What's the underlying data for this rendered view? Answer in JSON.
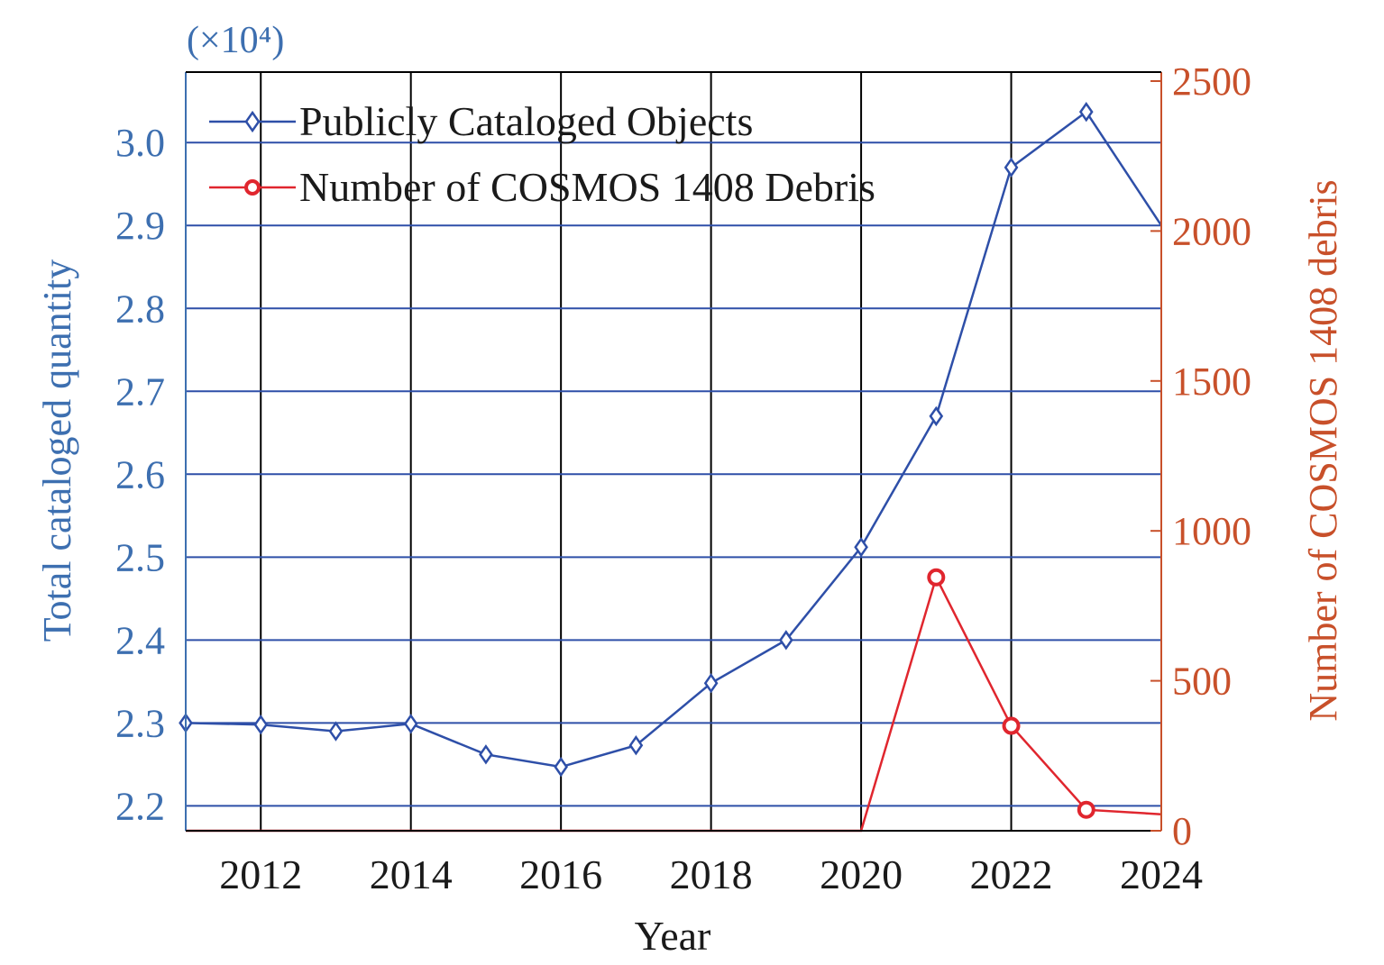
{
  "chart_data": {
    "type": "line",
    "x_axis": {
      "label": "Year",
      "range": [
        2011,
        2024
      ],
      "ticks": [
        2012,
        2014,
        2016,
        2018,
        2020,
        2022,
        2024
      ],
      "tick_labels": [
        "2012",
        "2014",
        "2016",
        "2018",
        "2020",
        "2022",
        "2024"
      ],
      "vertical_grid": true
    },
    "y_left": {
      "label": "Total cataloged quantity",
      "multiplier_label": "(×10⁴)",
      "range": [
        2.17,
        3.085
      ],
      "ticks": [
        2.2,
        2.3,
        2.4,
        2.5,
        2.6,
        2.7,
        2.8,
        2.9,
        3.0
      ],
      "tick_labels": [
        "2.2",
        "2.3",
        "2.4",
        "2.5",
        "2.6",
        "2.7",
        "2.8",
        "2.9",
        "3.0"
      ],
      "color": "#3d6fb0",
      "horizontal_grid": true
    },
    "y_right": {
      "label": "Number of COSMOS 1408 debris",
      "range": [
        0,
        2530
      ],
      "ticks": [
        0,
        500,
        1000,
        1500,
        2000,
        2500
      ],
      "tick_labels": [
        "0",
        "500",
        "1000",
        "1500",
        "2000",
        "2500"
      ],
      "color": "#c8502a"
    },
    "legend": {
      "position": "top-left",
      "entries": [
        "Publicly Cataloged Objects",
        "Number of COSMOS 1408 Debris"
      ]
    },
    "series": [
      {
        "name": "Publicly Cataloged Objects",
        "axis": "left",
        "color": "#2e4fa8",
        "marker": "diamond",
        "x": [
          2011,
          2012,
          2013,
          2014,
          2015,
          2016,
          2017,
          2018,
          2019,
          2020,
          2021,
          2022,
          2023,
          2024
        ],
        "y": [
          2.3,
          2.298,
          2.29,
          2.299,
          2.262,
          2.247,
          2.273,
          2.348,
          2.4,
          2.512,
          2.67,
          2.97,
          3.037,
          2.9
        ]
      },
      {
        "name": "Number of COSMOS 1408 Debris",
        "axis": "right",
        "color": "#e0262e",
        "marker": "circle",
        "x": [
          2011,
          2012,
          2013,
          2014,
          2015,
          2016,
          2017,
          2018,
          2019,
          2020,
          2021,
          2022,
          2023,
          2024
        ],
        "y": [
          0,
          0,
          0,
          0,
          0,
          0,
          0,
          0,
          0,
          0,
          845,
          350,
          70,
          55
        ]
      }
    ]
  }
}
